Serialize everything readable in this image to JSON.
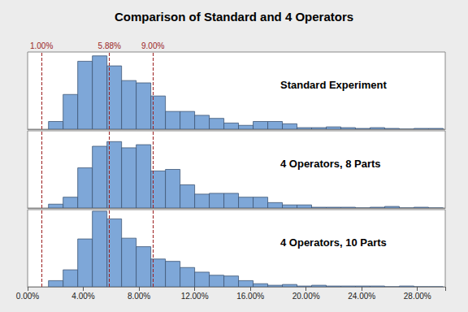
{
  "chart_data": {
    "type": "histogram",
    "title": "Comparison of Standard and 4 Operators",
    "bins": [
      1.5,
      2.55,
      3.6,
      4.65,
      5.7,
      6.75,
      7.8,
      8.85,
      9.9,
      10.95,
      12.0,
      13.05,
      14.1,
      15.15,
      16.2,
      17.25,
      18.3,
      19.35,
      20.4,
      21.45,
      22.5,
      23.55,
      24.6,
      25.65,
      26.7,
      27.75,
      28.8,
      29.85
    ],
    "series": [
      {
        "name": "Standard Experiment",
        "values": [
          10,
          45,
          88,
          95,
          82,
          63,
          60,
          43,
          23,
          23,
          18,
          14,
          8,
          5,
          10,
          10,
          7,
          2,
          2,
          3,
          2,
          1,
          2,
          1,
          0,
          1,
          1
        ]
      },
      {
        "name": "4 Operators, 8 Parts",
        "values": [
          5,
          14,
          52,
          80,
          86,
          78,
          82,
          48,
          50,
          30,
          18,
          19,
          19,
          14,
          14,
          7,
          4,
          4,
          1,
          1,
          1,
          0,
          1,
          2,
          0,
          1,
          0
        ]
      },
      {
        "name": "4 Operators, 10 Parts",
        "values": [
          8,
          22,
          62,
          98,
          88,
          63,
          52,
          36,
          33,
          25,
          19,
          15,
          14,
          8,
          4,
          2,
          3,
          1,
          2,
          1,
          1,
          1,
          1,
          0,
          1,
          0,
          0
        ]
      }
    ],
    "color": "#7ea7d8",
    "reference_lines": [
      {
        "value": 1.0,
        "label": "1.00%"
      },
      {
        "value": 5.88,
        "label": "5.88%"
      },
      {
        "value": 9.0,
        "label": "9.00%"
      }
    ],
    "line_style": "dashed",
    "xlim": [
      0,
      30
    ],
    "xticks": [
      {
        "value": 0,
        "label": "0.00%"
      },
      {
        "value": 4,
        "label": "4.00%"
      },
      {
        "value": 8,
        "label": "8.00%"
      },
      {
        "value": 12,
        "label": "12.00%"
      },
      {
        "value": 16,
        "label": "16.00%"
      },
      {
        "value": 20,
        "label": "20.00%"
      },
      {
        "value": 24,
        "label": "24.00%"
      },
      {
        "value": 28,
        "label": "28.00%"
      }
    ],
    "ylim": [
      0,
      100
    ],
    "tick_labels": "x",
    "grid": false
  }
}
